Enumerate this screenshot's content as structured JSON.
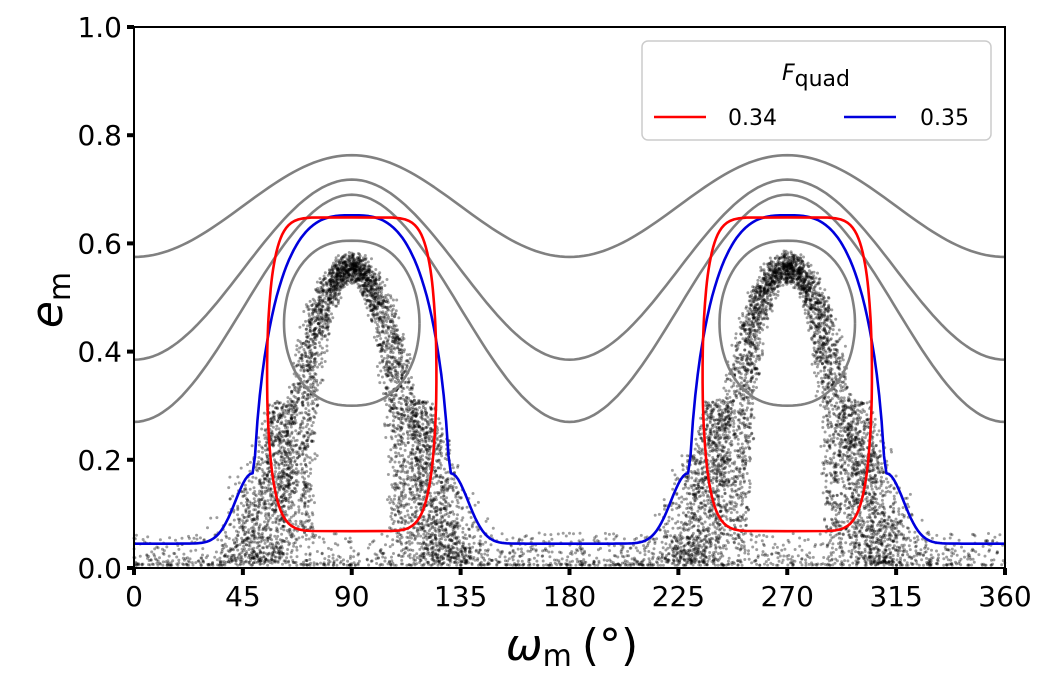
{
  "chart_data": {
    "type": "line",
    "xlabel": {
      "symbol": "ω",
      "subscript": "m",
      "unit": "(°)"
    },
    "ylabel": {
      "symbol": "e",
      "subscript": "m"
    },
    "xlim": [
      0,
      360
    ],
    "ylim": [
      0.0,
      1.0
    ],
    "xticks": [
      "0",
      "45",
      "90",
      "135",
      "180",
      "225",
      "270",
      "315",
      "360"
    ],
    "yticks": [
      "0.0",
      "0.2",
      "0.4",
      "0.6",
      "0.8",
      "1.0"
    ],
    "grid": false,
    "legend": {
      "title": "F",
      "title_subscript": "quad",
      "placement": "top-right",
      "entries": [
        {
          "label": "0.34",
          "color": "#ff0000"
        },
        {
          "label": "0.35",
          "color": "#0000dd"
        }
      ]
    },
    "series": [
      {
        "name": "0.34",
        "kind": "separatrix",
        "color": "#ff0000",
        "e_min": 0.068,
        "e_max": 0.648,
        "omega_extent": [
          55,
          125
        ]
      },
      {
        "name": "0.35",
        "kind": "separatrix",
        "color": "#0000dd",
        "e_floor": 0.045,
        "e_max": 0.652,
        "omega_extent": [
          49,
          131
        ]
      },
      {
        "name": "circulating-1",
        "kind": "circulating",
        "color": "#808080",
        "e_at_0": 0.575,
        "e_at_90": 0.763
      },
      {
        "name": "circulating-2",
        "kind": "circulating",
        "color": "#808080",
        "e_at_0": 0.385,
        "e_at_90": 0.718
      },
      {
        "name": "circulating-3",
        "kind": "circulating",
        "color": "#808080",
        "e_at_0": 0.27,
        "e_at_90": 0.69
      },
      {
        "name": "libration-inner",
        "kind": "libration",
        "color": "#808080",
        "e_min": 0.3,
        "e_max": 0.605,
        "omega_extent": [
          62,
          118
        ]
      }
    ],
    "scatter": {
      "name": "N-body samples",
      "color": "#000000",
      "e_range": [
        0.0,
        0.58
      ],
      "centers": [
        90,
        270
      ]
    }
  }
}
